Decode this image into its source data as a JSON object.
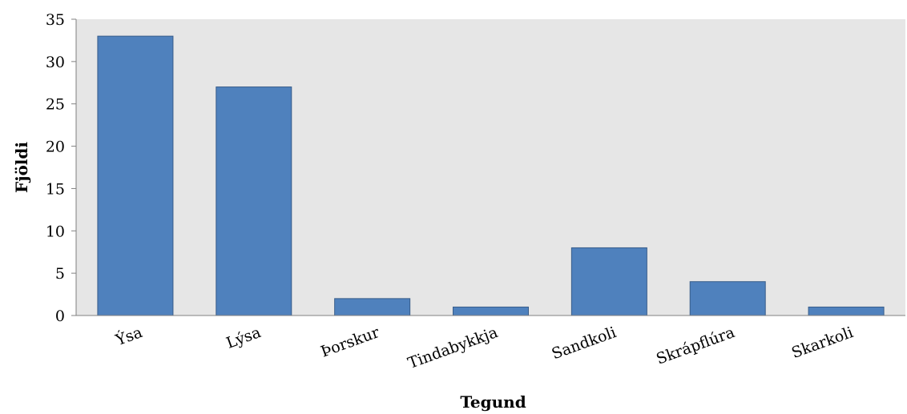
{
  "chart_data": {
    "type": "bar",
    "title": "",
    "xlabel": "Tegund",
    "ylabel": "Fjöldi",
    "categories": [
      "Ýsa",
      "Lýsa",
      "Þorskur",
      "Tindabykkja",
      "Sandkoli",
      "Skrápflúra",
      "Skarkoli"
    ],
    "values": [
      33,
      27,
      2,
      1,
      8,
      4,
      1
    ],
    "ylim": [
      0,
      35
    ],
    "yticks": [
      0,
      5,
      10,
      15,
      20,
      25,
      30,
      35
    ],
    "grid": false,
    "legend": "none",
    "colors": {
      "bar_fill": "#4f81bd",
      "bar_stroke": "#385d8a",
      "plot_background": "#e6e6e6",
      "axis": "#808080"
    }
  }
}
